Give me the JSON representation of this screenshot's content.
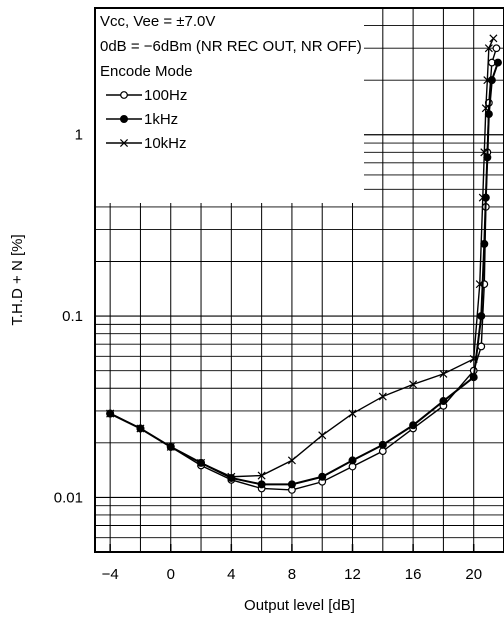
{
  "chart_data": {
    "type": "line",
    "title": "",
    "xlabel": "Output level [dB]",
    "ylabel": "T.H.D + N [%]",
    "x_scale": "linear",
    "y_scale": "log",
    "xlim": [
      -5,
      22
    ],
    "ylim": [
      0.005,
      5
    ],
    "x_ticks": [
      -4,
      0,
      4,
      8,
      12,
      16,
      20
    ],
    "x_tick_labels": [
      "−4",
      "0",
      "4",
      "8",
      "12",
      "16",
      "20"
    ],
    "y_ticks": [
      0.01,
      0.1,
      1
    ],
    "y_tick_labels": [
      "0.01",
      "0.1",
      "1"
    ],
    "grid": true,
    "legend_position": "top-left",
    "annotations": [
      "Vcc, Vee = ±7.0V",
      "0dB = −6dBm (NR REC OUT, NR OFF)",
      "Encode Mode"
    ],
    "series": [
      {
        "name": "100Hz",
        "marker": "open-circle",
        "x": [
          -4,
          -2,
          0,
          2,
          4,
          6,
          8,
          10,
          12,
          14,
          16,
          18,
          20,
          20.5,
          20.7,
          20.8,
          20.9,
          21.0,
          21.2,
          21.5
        ],
        "y": [
          0.029,
          0.024,
          0.019,
          0.015,
          0.0125,
          0.0112,
          0.011,
          0.0122,
          0.0148,
          0.018,
          0.024,
          0.032,
          0.05,
          0.068,
          0.15,
          0.4,
          0.8,
          1.5,
          2.5,
          3.0
        ]
      },
      {
        "name": "1kHz",
        "marker": "filled-circle",
        "x": [
          -4,
          -2,
          0,
          2,
          4,
          6,
          8,
          10,
          12,
          14,
          16,
          18,
          20,
          20.5,
          20.7,
          20.8,
          20.9,
          21.0,
          21.2,
          21.6
        ],
        "y": [
          0.029,
          0.024,
          0.019,
          0.0155,
          0.0128,
          0.0118,
          0.0118,
          0.013,
          0.016,
          0.0195,
          0.025,
          0.034,
          0.046,
          0.1,
          0.25,
          0.45,
          0.75,
          1.3,
          2.0,
          2.5
        ]
      },
      {
        "name": "10kHz",
        "marker": "cross",
        "x": [
          -4,
          -2,
          0,
          2,
          4,
          6,
          8,
          10,
          12,
          14,
          16,
          18,
          20,
          20.4,
          20.6,
          20.7,
          20.8,
          20.9,
          21.0,
          21.3
        ],
        "y": [
          0.029,
          0.024,
          0.019,
          0.0155,
          0.013,
          0.0132,
          0.016,
          0.022,
          0.029,
          0.036,
          0.042,
          0.048,
          0.058,
          0.15,
          0.45,
          0.8,
          1.4,
          2.0,
          3.0,
          3.4
        ]
      }
    ]
  }
}
